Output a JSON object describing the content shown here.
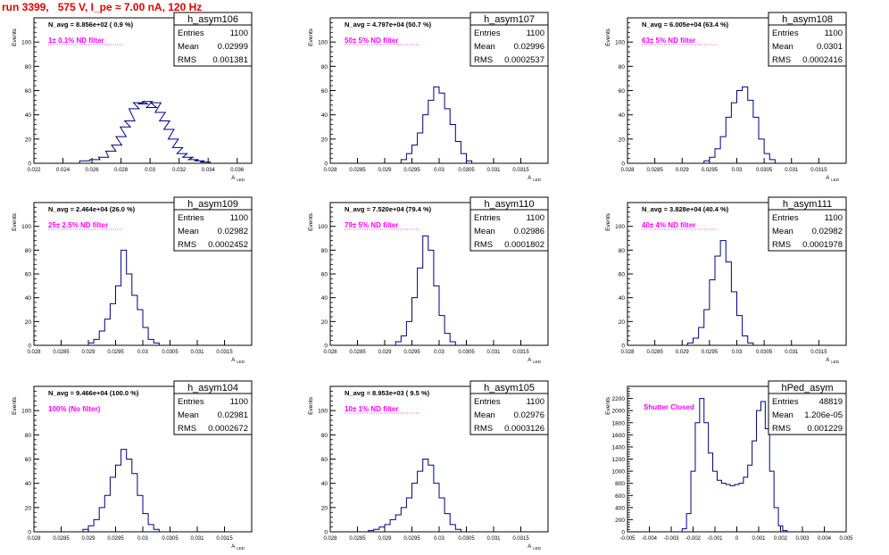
{
  "page_title": "run 3399,   575 V, I_pe ≈ 7.00 nA, 120 Hz",
  "colors": {
    "title": "#e00000",
    "filter_label": "#ff00ff",
    "hist_line": "#000080",
    "axis": "#000000"
  },
  "y_axis_label": "Events",
  "chart_data": [
    {
      "type": "bar",
      "name": "h_asym106",
      "title": "h_asym106",
      "stats": {
        "entries": "1100",
        "mean": "0.02999",
        "rms": "0.001381"
      },
      "n_avg_text": "N_avg = 8.856e+02 ( 0.9 %)",
      "filter_text": "1± 0.1% ND filter",
      "xlabel": "A_LED",
      "ylabel": "Events",
      "xlim": [
        0.022,
        0.037
      ],
      "ylim": [
        0,
        120
      ],
      "x_ticks": [
        "0.022",
        "0.024",
        "0.026",
        "0.028",
        "0.03",
        "0.032",
        "0.034",
        "0.036"
      ],
      "y_ticks": [
        "0",
        "20",
        "40",
        "60",
        "80",
        "100"
      ],
      "x": [
        0.0255,
        0.0262,
        0.0268,
        0.0273,
        0.0277,
        0.028,
        0.0283,
        0.0286,
        0.0289,
        0.0292,
        0.0295,
        0.0298,
        0.0301,
        0.0304,
        0.0307,
        0.031,
        0.0313,
        0.0316,
        0.0319,
        0.0322,
        0.0326,
        0.033,
        0.0334,
        0.0338
      ],
      "values": [
        2,
        3,
        5,
        10,
        15,
        22,
        30,
        35,
        45,
        50,
        49,
        51,
        46,
        50,
        42,
        35,
        28,
        20,
        13,
        8,
        5,
        3,
        2,
        1
      ]
    },
    {
      "type": "bar",
      "name": "h_asym107",
      "title": "h_asym107",
      "stats": {
        "entries": "1100",
        "mean": "0.02996",
        "rms": "0.0002537"
      },
      "n_avg_text": "N_avg = 4.797e+04 (50.7 %)",
      "filter_text": "50± 5% ND filter",
      "xlabel": "A_LED",
      "ylabel": "Events",
      "xlim": [
        0.028,
        0.032
      ],
      "ylim": [
        0,
        120
      ],
      "x_ticks": [
        "0.028",
        "0.0285",
        "0.029",
        "0.0295",
        "0.03",
        "0.0305",
        "0.031",
        "0.0315"
      ],
      "y_ticks": [
        "0",
        "20",
        "40",
        "60",
        "80",
        "100"
      ],
      "x": [
        0.02935,
        0.02945,
        0.02955,
        0.02965,
        0.02975,
        0.02985,
        0.02995,
        0.03005,
        0.03015,
        0.03025,
        0.03035,
        0.03045,
        0.03055
      ],
      "values": [
        3,
        8,
        15,
        25,
        40,
        52,
        63,
        58,
        45,
        32,
        18,
        8,
        2
      ]
    },
    {
      "type": "bar",
      "name": "h_asym108",
      "title": "h_asym108",
      "stats": {
        "entries": "1100",
        "mean": "0.0301",
        "rms": "0.0002416"
      },
      "n_avg_text": "N_avg = 6.005e+04 (63.4 %)",
      "filter_text": "63± 5% ND filter",
      "xlabel": "A_LED",
      "ylabel": "Events",
      "xlim": [
        0.028,
        0.032
      ],
      "ylim": [
        0,
        120
      ],
      "x_ticks": [
        "0.028",
        "0.0285",
        "0.029",
        "0.0295",
        "0.03",
        "0.0305",
        "0.031",
        "0.0315"
      ],
      "y_ticks": [
        "0",
        "20",
        "40",
        "60",
        "80",
        "100"
      ],
      "x": [
        0.02945,
        0.02955,
        0.02965,
        0.02975,
        0.02985,
        0.02995,
        0.03005,
        0.03015,
        0.03025,
        0.03035,
        0.03045,
        0.03055,
        0.03065
      ],
      "values": [
        2,
        5,
        12,
        22,
        38,
        50,
        60,
        63,
        52,
        38,
        20,
        8,
        3
      ]
    },
    {
      "type": "bar",
      "name": "h_asym109",
      "title": "h_asym109",
      "stats": {
        "entries": "1100",
        "mean": "0.02982",
        "rms": "0.0002452"
      },
      "n_avg_text": "N_avg = 2.464e+04 (26.0 %)",
      "filter_text": "25± 2.5% ND filter",
      "xlabel": "A_LED",
      "ylabel": "Events",
      "xlim": [
        0.028,
        0.032
      ],
      "ylim": [
        0,
        120
      ],
      "x_ticks": [
        "0.028",
        "0.0285",
        "0.029",
        "0.0295",
        "0.03",
        "0.0305",
        "0.031",
        "0.0315"
      ],
      "y_ticks": [
        "0",
        "20",
        "40",
        "60",
        "80",
        "100"
      ],
      "x": [
        0.02905,
        0.02915,
        0.02925,
        0.02935,
        0.02945,
        0.02955,
        0.02965,
        0.02975,
        0.02985,
        0.02995,
        0.03005,
        0.03015,
        0.03025
      ],
      "values": [
        2,
        5,
        12,
        22,
        35,
        50,
        80,
        60,
        42,
        30,
        15,
        5,
        2
      ]
    },
    {
      "type": "bar",
      "name": "h_asym110",
      "title": "h_asym110",
      "stats": {
        "entries": "1100",
        "mean": "0.02986",
        "rms": "0.0001802"
      },
      "n_avg_text": "N_avg = 7.520e+04 (79.4 %)",
      "filter_text": "79± 5% ND filter",
      "xlabel": "A_LED",
      "ylabel": "Events",
      "xlim": [
        0.028,
        0.032
      ],
      "ylim": [
        0,
        120
      ],
      "x_ticks": [
        "0.028",
        "0.0285",
        "0.029",
        "0.0295",
        "0.03",
        "0.0305",
        "0.031",
        "0.0315"
      ],
      "y_ticks": [
        "0",
        "20",
        "40",
        "60",
        "80",
        "100"
      ],
      "x": [
        0.02925,
        0.02935,
        0.02945,
        0.02955,
        0.02965,
        0.02975,
        0.02985,
        0.02995,
        0.03005,
        0.03015,
        0.03025
      ],
      "values": [
        3,
        8,
        20,
        40,
        65,
        92,
        80,
        50,
        25,
        10,
        3
      ]
    },
    {
      "type": "bar",
      "name": "h_asym111",
      "title": "h_asym111",
      "stats": {
        "entries": "1100",
        "mean": "0.02982",
        "rms": "0.0001978"
      },
      "n_avg_text": "N_avg = 3.828e+04 (40.4 %)",
      "filter_text": "40± 4% ND filter",
      "xlabel": "A_LED",
      "ylabel": "Events",
      "xlim": [
        0.028,
        0.032
      ],
      "ylim": [
        0,
        120
      ],
      "x_ticks": [
        "0.028",
        "0.0285",
        "0.029",
        "0.0295",
        "0.03",
        "0.0305",
        "0.031",
        "0.0315"
      ],
      "y_ticks": [
        "0",
        "20",
        "40",
        "60",
        "80",
        "100"
      ],
      "x": [
        0.02915,
        0.02925,
        0.02935,
        0.02945,
        0.02955,
        0.02965,
        0.02975,
        0.02985,
        0.02995,
        0.03005,
        0.03015,
        0.03025
      ],
      "values": [
        2,
        6,
        15,
        30,
        55,
        75,
        88,
        70,
        45,
        25,
        8,
        2
      ]
    },
    {
      "type": "bar",
      "name": "h_asym104",
      "title": "h_asym104",
      "stats": {
        "entries": "1100",
        "mean": "0.02981",
        "rms": "0.0002672"
      },
      "n_avg_text": "N_avg = 9.466e+04 (100.0 %)",
      "filter_text": "100% (No filter)",
      "xlabel": "A_LED",
      "ylabel": "Events",
      "xlim": [
        0.028,
        0.032
      ],
      "ylim": [
        0,
        120
      ],
      "x_ticks": [
        "0.028",
        "0.0285",
        "0.029",
        "0.0295",
        "0.03",
        "0.0305",
        "0.031",
        "0.0315"
      ],
      "y_ticks": [
        "0",
        "20",
        "40",
        "60",
        "80",
        "100"
      ],
      "x": [
        0.02895,
        0.02905,
        0.02915,
        0.02925,
        0.02935,
        0.02945,
        0.02955,
        0.02965,
        0.02975,
        0.02985,
        0.02995,
        0.03005,
        0.03015,
        0.03025
      ],
      "values": [
        2,
        5,
        10,
        20,
        30,
        45,
        55,
        68,
        60,
        48,
        30,
        15,
        6,
        2
      ]
    },
    {
      "type": "bar",
      "name": "h_asym105",
      "title": "h_asym105",
      "stats": {
        "entries": "1100",
        "mean": "0.02976",
        "rms": "0.0003126"
      },
      "n_avg_text": "N_avg = 8.953e+03 ( 9.5 %)",
      "filter_text": "10± 1% ND filter",
      "xlabel": "A_LED",
      "ylabel": "Events",
      "xlim": [
        0.028,
        0.032
      ],
      "ylim": [
        0,
        120
      ],
      "x_ticks": [
        "0.028",
        "0.0285",
        "0.029",
        "0.0295",
        "0.03",
        "0.0305",
        "0.031",
        "0.0315"
      ],
      "y_ticks": [
        "0",
        "20",
        "40",
        "60",
        "80",
        "100"
      ],
      "x": [
        0.02875,
        0.02885,
        0.02895,
        0.02905,
        0.02915,
        0.02925,
        0.02935,
        0.02945,
        0.02955,
        0.02965,
        0.02975,
        0.02985,
        0.02995,
        0.03005,
        0.03015,
        0.03025,
        0.03035
      ],
      "values": [
        1,
        2,
        4,
        6,
        10,
        14,
        20,
        28,
        40,
        50,
        60,
        55,
        40,
        28,
        15,
        6,
        2
      ]
    },
    {
      "type": "bar",
      "name": "hPed_asym",
      "title": "hPed_asym",
      "stats": {
        "entries": "48819",
        "mean": "1.206e-05",
        "rms": "0.001229"
      },
      "n_avg_text": "",
      "filter_text": "Shutter Closed",
      "xlabel": "",
      "ylabel": "Events",
      "xlim": [
        -0.005,
        0.005
      ],
      "ylim": [
        0,
        2400
      ],
      "x_ticks": [
        "-0.005",
        "-0.004",
        "-0.003",
        "-0.002",
        "-0.001",
        "0",
        "0.001",
        "0.002",
        "0.003",
        "0.004",
        "0.005"
      ],
      "y_ticks": [
        "0",
        "200",
        "400",
        "600",
        "800",
        "1000",
        "1200",
        "1400",
        "1600",
        "1800",
        "2000",
        "2200"
      ],
      "x": [
        -0.0024,
        -0.0022,
        -0.002,
        -0.0018,
        -0.0016,
        -0.0014,
        -0.0012,
        -0.001,
        -0.0008,
        -0.0006,
        -0.0004,
        -0.0002,
        0,
        0.0002,
        0.0004,
        0.0006,
        0.0008,
        0.001,
        0.0012,
        0.0014,
        0.0016,
        0.0018,
        0.002,
        0.0022
      ],
      "values": [
        50,
        300,
        1000,
        1800,
        2200,
        1800,
        1300,
        1000,
        850,
        800,
        780,
        760,
        780,
        800,
        900,
        1100,
        1500,
        2000,
        2150,
        1700,
        1000,
        400,
        100,
        20
      ]
    }
  ]
}
